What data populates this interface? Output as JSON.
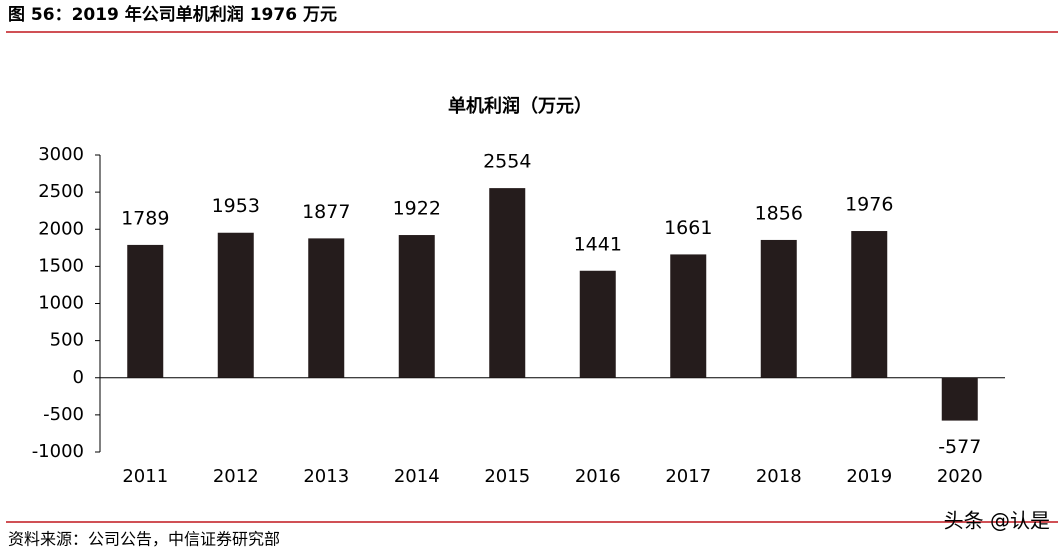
{
  "header": {
    "title": "图 56：2019 年公司单机利润 1976 万元"
  },
  "chart_data": {
    "type": "bar",
    "title": "单机利润（万元）",
    "categories": [
      "2011",
      "2012",
      "2013",
      "2014",
      "2015",
      "2016",
      "2017",
      "2018",
      "2019",
      "2020"
    ],
    "values": [
      1789,
      1953,
      1877,
      1922,
      2554,
      1441,
      1661,
      1856,
      1976,
      -577
    ],
    "color": "#251c1c",
    "ylim": [
      -1000,
      3000
    ],
    "yticks": [
      -1000,
      -500,
      0,
      500,
      1000,
      1500,
      2000,
      2500,
      3000
    ]
  },
  "footer": {
    "source": "资料来源：公司公告，中信证券研究部"
  },
  "watermark": "头条 @认是"
}
